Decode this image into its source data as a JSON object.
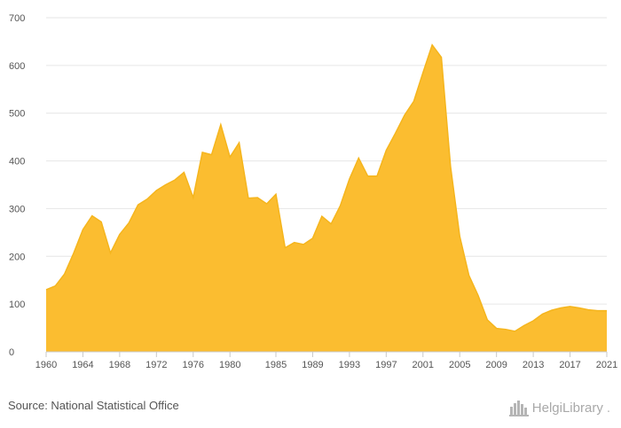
{
  "chart_data": {
    "type": "area",
    "title": "",
    "xlabel": "",
    "ylabel": "",
    "ylim": [
      0,
      700
    ],
    "yticks": [
      0,
      100,
      200,
      300,
      400,
      500,
      600,
      700
    ],
    "xlim": [
      1960,
      2021
    ],
    "xticks": [
      1960,
      1964,
      1968,
      1972,
      1976,
      1980,
      1985,
      1989,
      1993,
      1997,
      2001,
      2005,
      2009,
      2013,
      2017,
      2021
    ],
    "grid": "horizontal",
    "legend": "none",
    "fill_color": "#fbbd30",
    "line_color": "#f5b51d",
    "x": [
      1960,
      1961,
      1962,
      1963,
      1964,
      1965,
      1966,
      1967,
      1968,
      1969,
      1970,
      1971,
      1972,
      1973,
      1974,
      1975,
      1976,
      1977,
      1978,
      1979,
      1980,
      1981,
      1982,
      1983,
      1984,
      1985,
      1986,
      1987,
      1988,
      1989,
      1990,
      1991,
      1992,
      1993,
      1994,
      1995,
      1996,
      1997,
      1998,
      1999,
      2000,
      2001,
      2002,
      2003,
      2004,
      2005,
      2006,
      2007,
      2008,
      2009,
      2010,
      2011,
      2012,
      2013,
      2014,
      2015,
      2016,
      2017,
      2018,
      2019,
      2020,
      2021
    ],
    "values": [
      130,
      138,
      163,
      207,
      256,
      285,
      272,
      207,
      246,
      270,
      308,
      320,
      338,
      350,
      360,
      376,
      323,
      418,
      413,
      476,
      408,
      438,
      322,
      323,
      310,
      330,
      218,
      229,
      225,
      238,
      284,
      268,
      306,
      362,
      406,
      368,
      368,
      422,
      458,
      496,
      525,
      585,
      643,
      617,
      388,
      242,
      160,
      118,
      67,
      49,
      47,
      43,
      55,
      65,
      79,
      87,
      92,
      95,
      92,
      88,
      86,
      86
    ]
  },
  "footer": {
    "source": "Source: National Statistical Office",
    "brand_name": "HelgiLibrary",
    "brand_dot": ".",
    "brand_icon": "cityscape-logo-icon"
  }
}
